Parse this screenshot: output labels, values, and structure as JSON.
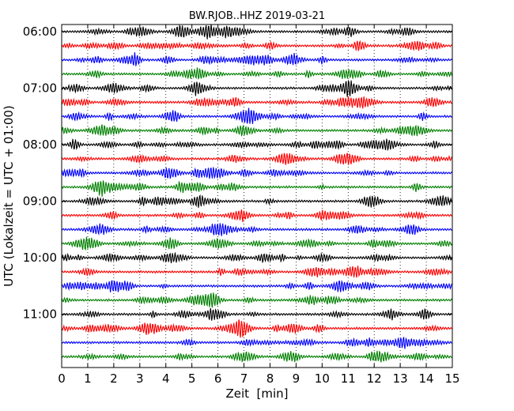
{
  "chart_data": {
    "type": "line",
    "title": "BW.RJOB..HHZ 2019-03-21",
    "xlabel": "Zeit  [min]",
    "ylabel": "UTC (Lokalzeit = UTC + 01:00)",
    "xlim": [
      0,
      15
    ],
    "x_ticks": [
      "0",
      "1",
      "2",
      "3",
      "4",
      "5",
      "6",
      "7",
      "8",
      "9",
      "10",
      "11",
      "12",
      "13",
      "14",
      "15"
    ],
    "y_ticks": [
      "06:00",
      "07:00",
      "08:00",
      "09:00",
      "10:00",
      "11:00"
    ],
    "grid": "vertical dotted",
    "trace_colors": [
      "#000000",
      "#ff0000",
      "#0000ff",
      "#008000"
    ],
    "traces_start": "06:00",
    "trace_interval_min": 15,
    "trace_count": 24
  }
}
